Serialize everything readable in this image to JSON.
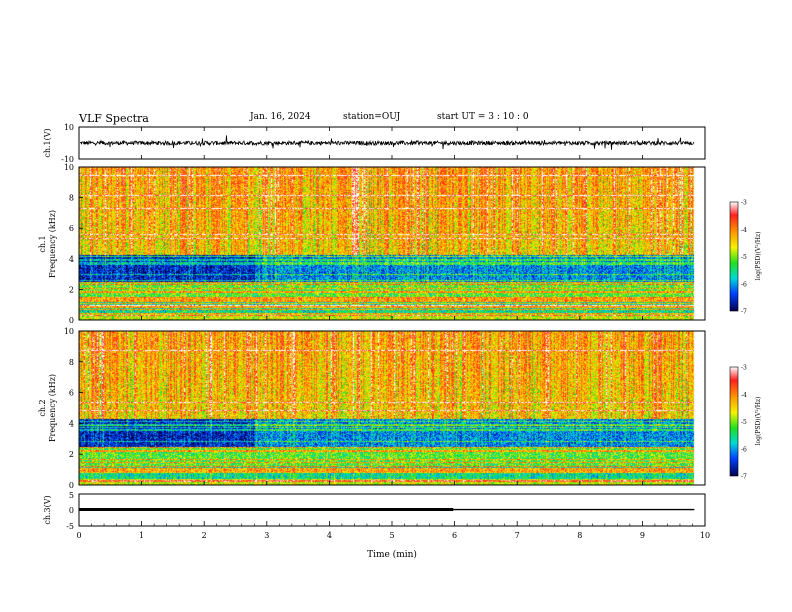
{
  "header": {
    "title": "VLF Spectra",
    "date": "Jan. 16, 2024",
    "station": "station=OUJ",
    "start": "start UT =  3 : 10 : 0"
  },
  "chart_data": [
    {
      "type": "line",
      "name": "waveform-ch1",
      "ylabel": "ch.1(V)",
      "ylim": [
        -10,
        10
      ],
      "yticks": [
        "10",
        "-10"
      ],
      "xlim": [
        0,
        10
      ],
      "x_end": 9.83,
      "baseline": 0,
      "amplitude": 2.5
    },
    {
      "type": "heatmap",
      "name": "spectrogram-ch1",
      "ylabel": "ch.1\nFrequency (kHz)",
      "ylim": [
        0,
        10
      ],
      "yticks": [
        "0",
        "2",
        "4",
        "6",
        "8",
        "10"
      ],
      "xlim": [
        0,
        10
      ],
      "x_end": 9.83,
      "colorbar": {
        "label": "log(PSD)(V²/Hz)",
        "range": [
          -7,
          -3
        ],
        "ticks": [
          "-3",
          "-4",
          "-5",
          "-6",
          "-7"
        ]
      }
    },
    {
      "type": "heatmap",
      "name": "spectrogram-ch2",
      "ylabel": "ch.2\nFrequency (kHz)",
      "ylim": [
        0,
        10
      ],
      "yticks": [
        "0",
        "2",
        "4",
        "6",
        "8",
        "10"
      ],
      "xlim": [
        0,
        10
      ],
      "x_end": 9.83,
      "colorbar": {
        "label": "log(PSD)(V²/Hz)",
        "range": [
          -7,
          -3
        ],
        "ticks": [
          "-3",
          "-4",
          "-5",
          "-6",
          "-7"
        ]
      }
    },
    {
      "type": "line",
      "name": "waveform-ch3",
      "ylabel": "ch.3(V)",
      "ylim": [
        -5,
        5
      ],
      "yticks": [
        "5",
        "0",
        "-5"
      ],
      "xlim": [
        0,
        10
      ],
      "segments": [
        {
          "x": [
            0,
            5.98
          ],
          "y": 0.15,
          "width": "thick"
        },
        {
          "x": [
            5.98,
            9.83
          ],
          "y": 0.15,
          "width": "thin"
        }
      ],
      "xlabel": "Time (min)",
      "xticks": [
        "0",
        "1",
        "2",
        "3",
        "4",
        "5",
        "6",
        "7",
        "8",
        "9",
        "10"
      ]
    }
  ]
}
